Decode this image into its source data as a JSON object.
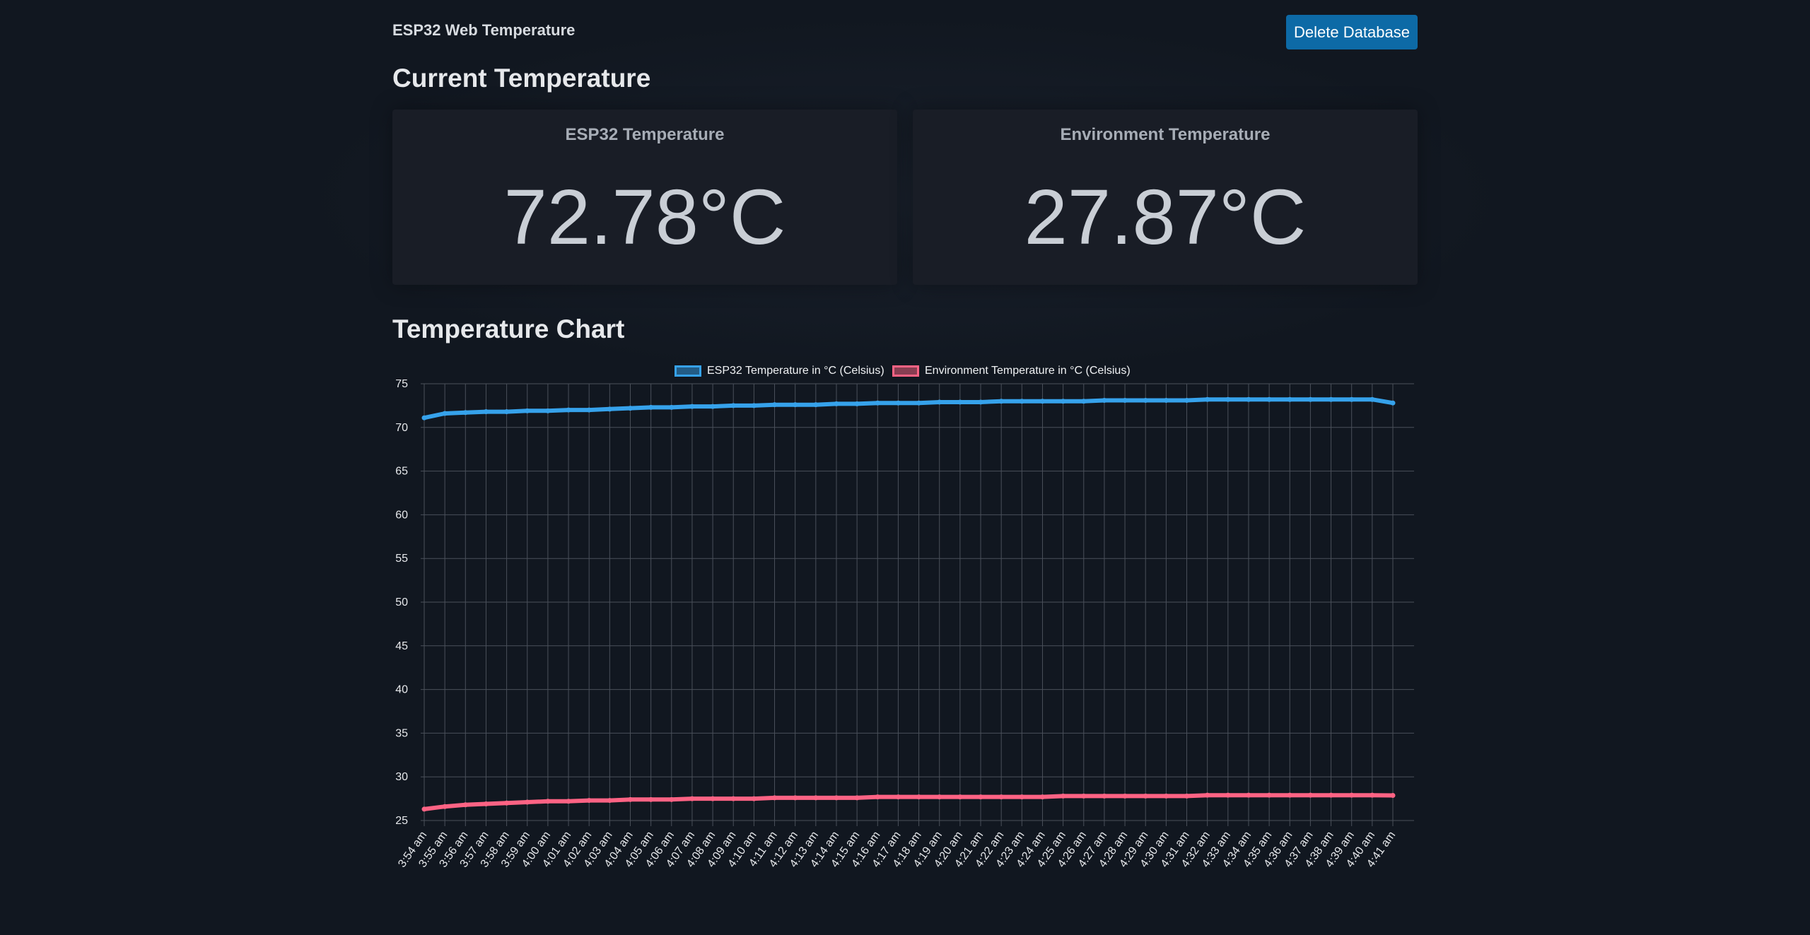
{
  "header": {
    "app_title": "ESP32 Web Temperature",
    "delete_label": "Delete Database"
  },
  "current": {
    "heading": "Current Temperature",
    "cards": [
      {
        "title": "ESP32 Temperature",
        "value": "72.78°C"
      },
      {
        "title": "Environment Temperature",
        "value": "27.87°C"
      }
    ]
  },
  "chart_section": {
    "heading": "Temperature Chart"
  },
  "colors": {
    "esp32_line": "#36a2eb",
    "env_line": "#ff6384",
    "button": "#0d6aa6",
    "background": "#111720",
    "card": "#191d26"
  },
  "chart_data": {
    "type": "line",
    "legend_position": "top",
    "grid": true,
    "ylim": [
      25,
      75
    ],
    "yticks": [
      75,
      70,
      65,
      60,
      55,
      50,
      45,
      40,
      35,
      30,
      25
    ],
    "categories": [
      "3:54 am",
      "3:55 am",
      "3:56 am",
      "3:57 am",
      "3:58 am",
      "3:59 am",
      "4:00 am",
      "4:01 am",
      "4:02 am",
      "4:03 am",
      "4:04 am",
      "4:05 am",
      "4:06 am",
      "4:07 am",
      "4:08 am",
      "4:09 am",
      "4:10 am",
      "4:11 am",
      "4:12 am",
      "4:13 am",
      "4:14 am",
      "4:15 am",
      "4:16 am",
      "4:17 am",
      "4:18 am",
      "4:19 am",
      "4:20 am",
      "4:21 am",
      "4:22 am",
      "4:23 am",
      "4:24 am",
      "4:25 am",
      "4:26 am",
      "4:27 am",
      "4:28 am",
      "4:29 am",
      "4:30 am",
      "4:31 am",
      "4:32 am",
      "4:33 am",
      "4:34 am",
      "4:35 am",
      "4:36 am",
      "4:37 am",
      "4:38 am",
      "4:39 am",
      "4:40 am",
      "4:41 am"
    ],
    "series": [
      {
        "name": "ESP32 Temperature in °C (Celsius)",
        "values": [
          71.1,
          71.6,
          71.7,
          71.8,
          71.8,
          71.9,
          71.9,
          72.0,
          72.0,
          72.1,
          72.2,
          72.3,
          72.3,
          72.4,
          72.4,
          72.5,
          72.5,
          72.6,
          72.6,
          72.6,
          72.7,
          72.7,
          72.8,
          72.8,
          72.8,
          72.9,
          72.9,
          72.9,
          73.0,
          73.0,
          73.0,
          73.0,
          73.0,
          73.1,
          73.1,
          73.1,
          73.1,
          73.1,
          73.2,
          73.2,
          73.2,
          73.2,
          73.2,
          73.2,
          73.2,
          73.2,
          73.2,
          72.8
        ]
      },
      {
        "name": "Environment Temperature in °C (Celsius)",
        "values": [
          26.3,
          26.6,
          26.8,
          26.9,
          27.0,
          27.1,
          27.2,
          27.2,
          27.3,
          27.3,
          27.4,
          27.4,
          27.4,
          27.5,
          27.5,
          27.5,
          27.5,
          27.6,
          27.6,
          27.6,
          27.6,
          27.6,
          27.7,
          27.7,
          27.7,
          27.7,
          27.7,
          27.7,
          27.7,
          27.7,
          27.7,
          27.8,
          27.8,
          27.8,
          27.8,
          27.8,
          27.8,
          27.8,
          27.9,
          27.9,
          27.9,
          27.9,
          27.9,
          27.9,
          27.9,
          27.9,
          27.9,
          27.87
        ]
      }
    ]
  }
}
